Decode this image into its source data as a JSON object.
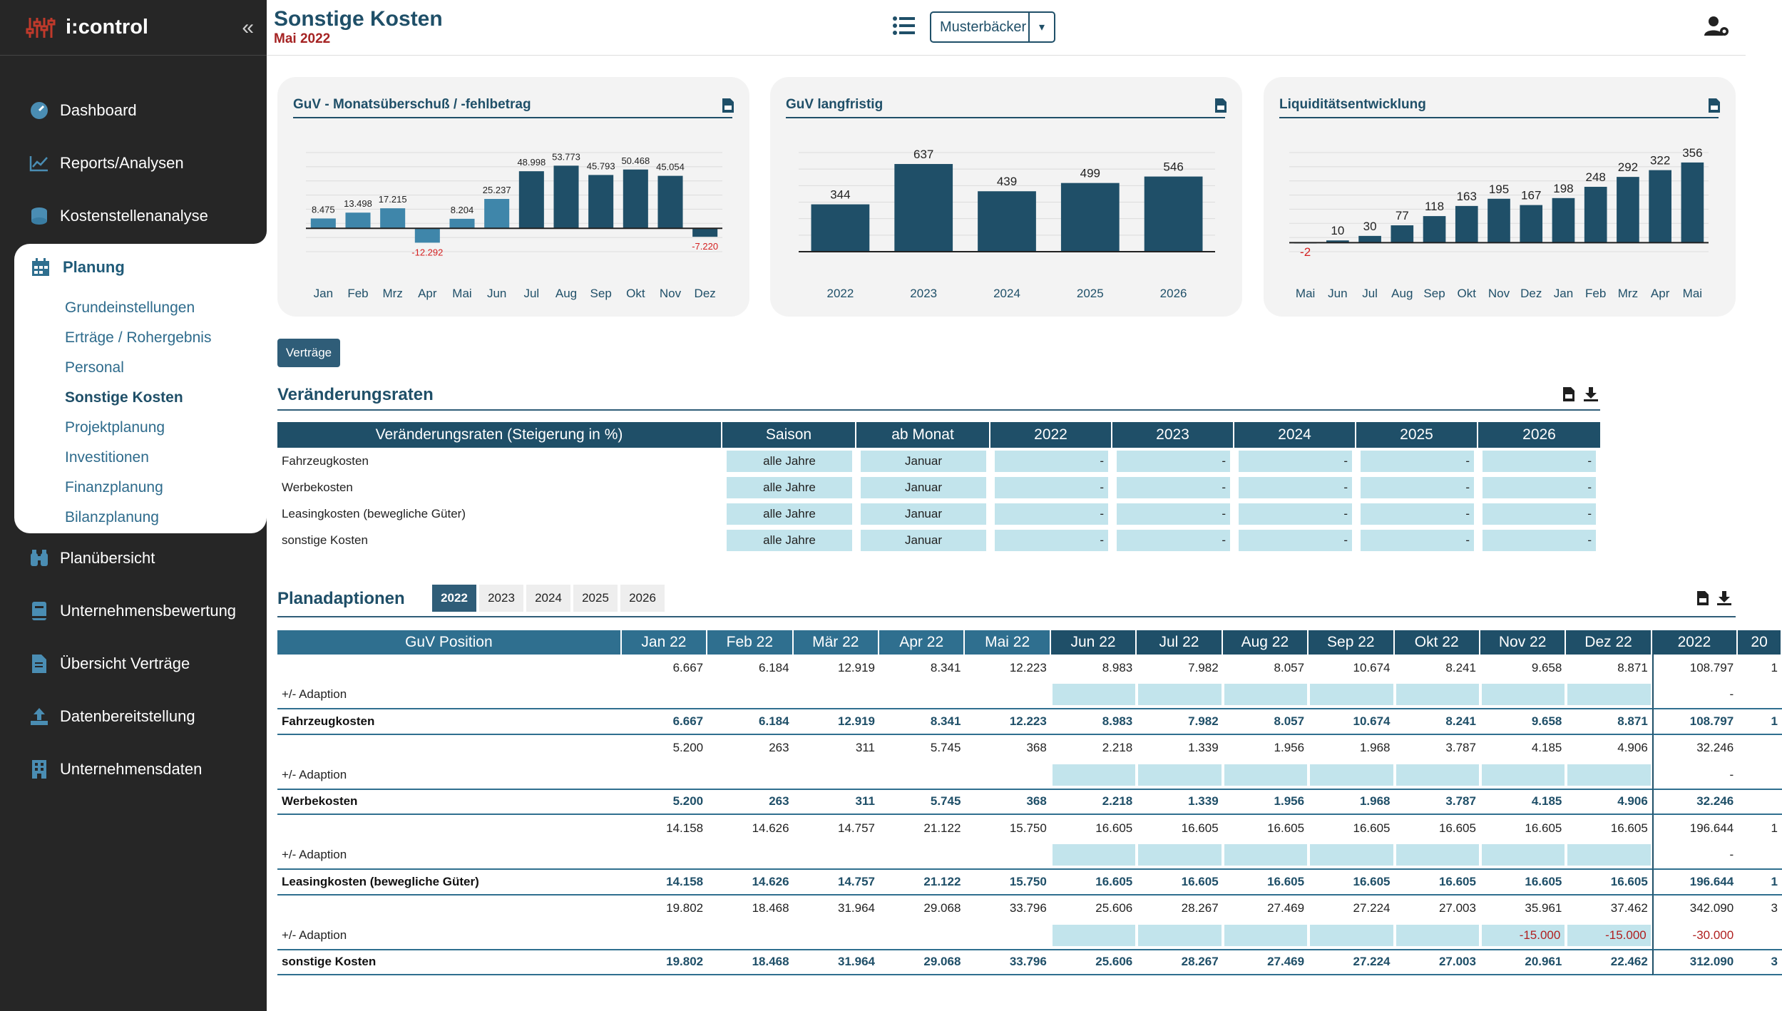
{
  "app": {
    "name": "i:control"
  },
  "sidebar": {
    "items": [
      {
        "label": "Dashboard",
        "icon": "gauge-icon"
      },
      {
        "label": "Reports/Analysen",
        "icon": "line-chart-icon"
      },
      {
        "label": "Kostenstellenanalyse",
        "icon": "coins-icon"
      },
      {
        "label": "Planung",
        "icon": "calendar-icon"
      },
      {
        "label": "Planübersicht",
        "icon": "binoculars-icon"
      },
      {
        "label": "Unternehmensbewertung",
        "icon": "book-icon"
      },
      {
        "label": "Übersicht Verträge",
        "icon": "file-contract-icon"
      },
      {
        "label": "Datenbereitstellung",
        "icon": "upload-icon"
      },
      {
        "label": "Unternehmensdaten",
        "icon": "building-icon"
      }
    ],
    "planung_sub": [
      "Grundeinstellungen",
      "Erträge / Rohergebnis",
      "Personal",
      "Sonstige Kosten",
      "Projektplanung",
      "Investitionen",
      "Finanzplanung",
      "Bilanzplanung"
    ],
    "active_sub": "Sonstige Kosten"
  },
  "header": {
    "title": "Sonstige Kosten",
    "subtitle": "Mai 2022",
    "company": "Musterbäcker"
  },
  "chart_data": [
    {
      "type": "bar",
      "title": "GuV - Monatsüberschuß / -fehlbetrag",
      "categories": [
        "Jan",
        "Feb",
        "Mrz",
        "Apr",
        "Mai",
        "Jun",
        "Jul",
        "Aug",
        "Sep",
        "Okt",
        "Nov",
        "Dez"
      ],
      "values": [
        8475,
        13498,
        17215,
        -12292,
        8204,
        25237,
        48998,
        53773,
        45793,
        50468,
        45054,
        -7220
      ],
      "labels": [
        "8.475",
        "13.498",
        "17.215",
        "-12.292",
        "8.204",
        "25.237",
        "48.998",
        "53.773",
        "45.793",
        "50.468",
        "45.054",
        "-7.220"
      ],
      "actual_count": 6,
      "ylim": [
        -20000,
        65000
      ]
    },
    {
      "type": "bar",
      "title": "GuV langfristig",
      "categories": [
        "2022",
        "2023",
        "2024",
        "2025",
        "2026"
      ],
      "values": [
        344,
        637,
        439,
        499,
        546
      ],
      "labels": [
        "344",
        "637",
        "439",
        "499",
        "546"
      ],
      "ylim": [
        0,
        720
      ]
    },
    {
      "type": "bar",
      "title": "Liquiditätsentwicklung",
      "categories": [
        "Mai",
        "Jun",
        "Jul",
        "Aug",
        "Sep",
        "Okt",
        "Nov",
        "Dez",
        "Jan",
        "Feb",
        "Mrz",
        "Apr",
        "Mai"
      ],
      "values": [
        -2,
        10,
        30,
        77,
        118,
        163,
        195,
        167,
        198,
        248,
        292,
        322,
        356
      ],
      "labels": [
        "-2",
        "10",
        "30",
        "77",
        "118",
        "163",
        "195",
        "167",
        "198",
        "248",
        "292",
        "322",
        "356"
      ],
      "ylim": [
        -40,
        400
      ]
    }
  ],
  "buttons": {
    "vertraege": "Verträge"
  },
  "rates": {
    "title": "Veränderungsraten",
    "headers": [
      "Veränderungsraten (Steigerung in %)",
      "Saison",
      "ab Monat",
      "2022",
      "2023",
      "2024",
      "2025",
      "2026"
    ],
    "rows": [
      [
        "Fahrzeugkosten",
        "alle Jahre",
        "Januar",
        "-",
        "-",
        "-",
        "-",
        "-"
      ],
      [
        "Werbekosten",
        "alle Jahre",
        "Januar",
        "-",
        "-",
        "-",
        "-",
        "-"
      ],
      [
        "Leasingkosten (bewegliche Güter)",
        "alle Jahre",
        "Januar",
        "-",
        "-",
        "-",
        "-",
        "-"
      ],
      [
        "sonstige Kosten",
        "alle Jahre",
        "Januar",
        "-",
        "-",
        "-",
        "-",
        "-"
      ]
    ]
  },
  "plan": {
    "title": "Planadaptionen",
    "year_tabs": [
      "2022",
      "2023",
      "2024",
      "2025",
      "2026"
    ],
    "active_year": "2022",
    "headers": [
      "GuV Position",
      "Jan 22",
      "Feb 22",
      "Mär 22",
      "Apr 22",
      "Mai 22",
      "Jun 22",
      "Jul 22",
      "Aug 22",
      "Sep 22",
      "Okt 22",
      "Nov 22",
      "Dez 22",
      "2022",
      "20"
    ],
    "adaption_label": "+/- Adaption",
    "groups": [
      {
        "name": "Fahrzeugkosten",
        "base": [
          "6.667",
          "6.184",
          "12.919",
          "8.341",
          "12.223",
          "8.983",
          "7.982",
          "8.057",
          "10.674",
          "8.241",
          "9.658",
          "8.871",
          "108.797",
          "1"
        ],
        "adaption": [
          "",
          "",
          "",
          "",
          "",
          "",
          "",
          "",
          "",
          "",
          "",
          "",
          "-",
          ""
        ],
        "total": [
          "6.667",
          "6.184",
          "12.919",
          "8.341",
          "12.223",
          "8.983",
          "7.982",
          "8.057",
          "10.674",
          "8.241",
          "9.658",
          "8.871",
          "108.797",
          "1"
        ]
      },
      {
        "name": "Werbekosten",
        "base": [
          "5.200",
          "263",
          "311",
          "5.745",
          "368",
          "2.218",
          "1.339",
          "1.956",
          "1.968",
          "3.787",
          "4.185",
          "4.906",
          "32.246",
          ""
        ],
        "adaption": [
          "",
          "",
          "",
          "",
          "",
          "",
          "",
          "",
          "",
          "",
          "",
          "",
          "-",
          ""
        ],
        "total": [
          "5.200",
          "263",
          "311",
          "5.745",
          "368",
          "2.218",
          "1.339",
          "1.956",
          "1.968",
          "3.787",
          "4.185",
          "4.906",
          "32.246",
          ""
        ]
      },
      {
        "name": "Leasingkosten (bewegliche Güter)",
        "base": [
          "14.158",
          "14.626",
          "14.757",
          "21.122",
          "15.750",
          "16.605",
          "16.605",
          "16.605",
          "16.605",
          "16.605",
          "16.605",
          "16.605",
          "196.644",
          "1"
        ],
        "adaption": [
          "",
          "",
          "",
          "",
          "",
          "",
          "",
          "",
          "",
          "",
          "",
          "",
          "-",
          ""
        ],
        "total": [
          "14.158",
          "14.626",
          "14.757",
          "21.122",
          "15.750",
          "16.605",
          "16.605",
          "16.605",
          "16.605",
          "16.605",
          "16.605",
          "16.605",
          "196.644",
          "1"
        ]
      },
      {
        "name": "sonstige Kosten",
        "base": [
          "19.802",
          "18.468",
          "31.964",
          "29.068",
          "33.796",
          "25.606",
          "28.267",
          "27.469",
          "27.224",
          "27.003",
          "35.961",
          "37.462",
          "342.090",
          "3"
        ],
        "adaption": [
          "",
          "",
          "",
          "",
          "",
          "",
          "",
          "",
          "",
          "",
          "-15.000",
          "-15.000",
          "-30.000",
          ""
        ],
        "total": [
          "19.802",
          "18.468",
          "31.964",
          "29.068",
          "33.796",
          "25.606",
          "28.267",
          "27.469",
          "27.224",
          "27.003",
          "20.961",
          "22.462",
          "312.090",
          "3"
        ]
      }
    ]
  },
  "colors": {
    "bar_actual": "#3f86aa",
    "bar_plan": "#1f4f68",
    "negative": "#d42020",
    "input_cell": "#c2e4ec",
    "header": "#1f4f68"
  }
}
